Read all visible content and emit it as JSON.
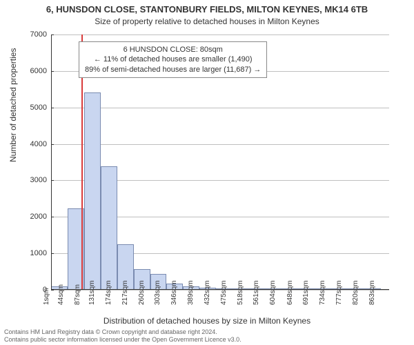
{
  "title_main": "6, HUNSDON CLOSE, STANTONBURY FIELDS, MILTON KEYNES, MK14 6TB",
  "title_sub": "Size of property relative to detached houses in Milton Keynes",
  "ylabel": "Number of detached properties",
  "xlabel": "Distribution of detached houses by size in Milton Keynes",
  "footer_line1": "Contains HM Land Registry data © Crown copyright and database right 2024.",
  "footer_line2": "Contains public sector information licensed under the Open Government Licence v3.0.",
  "annotation": {
    "line1": "6 HUNSDON CLOSE: 80sqm",
    "line2": "← 11% of detached houses are smaller (1,490)",
    "line3": "89% of semi-detached houses are larger (11,687) →"
  },
  "chart": {
    "type": "histogram",
    "bar_fill": "#c9d6f0",
    "bar_stroke": "#7a8bb0",
    "background": "#ffffff",
    "grid_color": "#bfbfbf",
    "ref_line_color": "#d93b3b",
    "ref_line_x_sqm": 80,
    "x_domain_sqm": [
      1,
      885
    ],
    "y_domain": [
      0,
      7000
    ],
    "y_ticks": [
      0,
      1000,
      2000,
      3000,
      4000,
      5000,
      6000,
      7000
    ],
    "x_tick_labels": [
      "1sqm",
      "44sqm",
      "87sqm",
      "131sqm",
      "174sqm",
      "217sqm",
      "260sqm",
      "303sqm",
      "346sqm",
      "389sqm",
      "432sqm",
      "475sqm",
      "518sqm",
      "561sqm",
      "604sqm",
      "648sqm",
      "691sqm",
      "734sqm",
      "777sqm",
      "820sqm",
      "863sqm"
    ],
    "x_tick_positions_sqm": [
      1,
      44,
      87,
      131,
      174,
      217,
      260,
      303,
      346,
      389,
      432,
      475,
      518,
      561,
      604,
      648,
      691,
      734,
      777,
      820,
      863
    ],
    "bars": [
      {
        "x0": 1,
        "x1": 44,
        "v": 90
      },
      {
        "x0": 44,
        "x1": 87,
        "v": 2240
      },
      {
        "x0": 87,
        "x1": 131,
        "v": 5420
      },
      {
        "x0": 131,
        "x1": 174,
        "v": 3390
      },
      {
        "x0": 174,
        "x1": 217,
        "v": 1250
      },
      {
        "x0": 217,
        "x1": 260,
        "v": 570
      },
      {
        "x0": 260,
        "x1": 303,
        "v": 430
      },
      {
        "x0": 303,
        "x1": 346,
        "v": 170
      },
      {
        "x0": 346,
        "x1": 389,
        "v": 90
      },
      {
        "x0": 389,
        "x1": 432,
        "v": 60
      },
      {
        "x0": 432,
        "x1": 475,
        "v": 30
      },
      {
        "x0": 475,
        "x1": 518,
        "v": 20
      },
      {
        "x0": 518,
        "x1": 561,
        "v": 15
      },
      {
        "x0": 561,
        "x1": 604,
        "v": 10
      },
      {
        "x0": 604,
        "x1": 648,
        "v": 8
      },
      {
        "x0": 648,
        "x1": 691,
        "v": 6
      },
      {
        "x0": 691,
        "x1": 734,
        "v": 5
      },
      {
        "x0": 734,
        "x1": 777,
        "v": 4
      },
      {
        "x0": 777,
        "x1": 820,
        "v": 3
      },
      {
        "x0": 820,
        "x1": 863,
        "v": 2
      }
    ],
    "title_fontsize": 13,
    "subtitle_fontsize": 12,
    "tick_fontsize": 11,
    "label_fontsize": 12,
    "annot_fontsize": 11
  }
}
